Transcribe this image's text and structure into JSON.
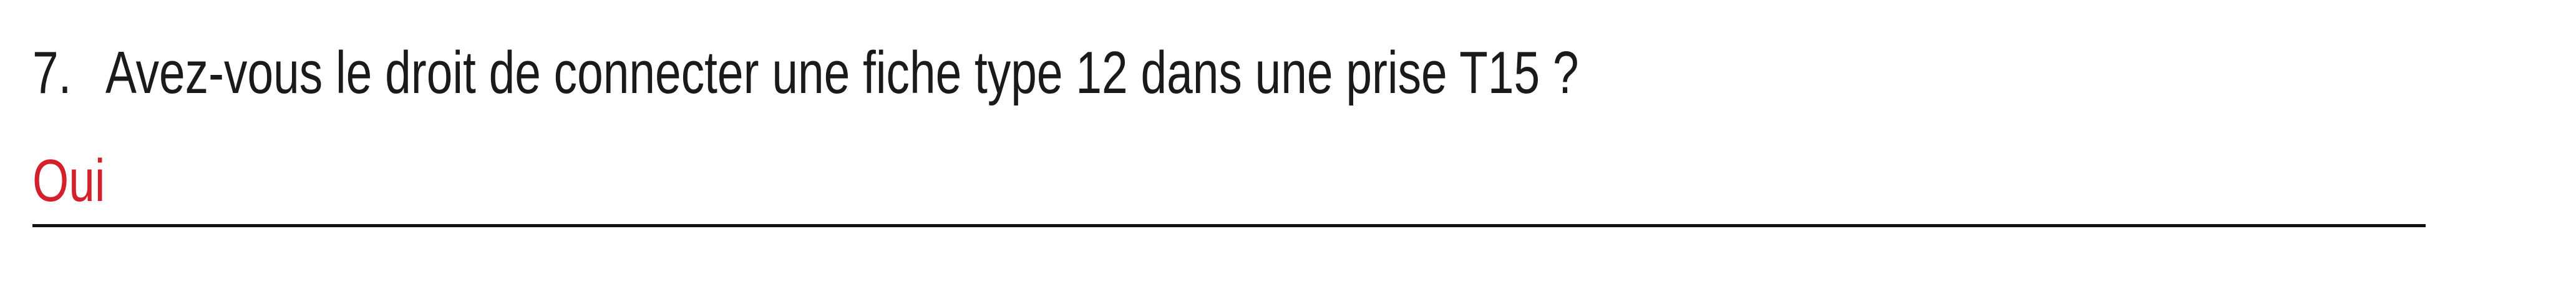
{
  "question": {
    "number": "7.",
    "text": "Avez-vous le droit de connecter une fiche type 12 dans une prise T15 ?"
  },
  "answer": {
    "text": "Oui"
  },
  "colors": {
    "question": "#1a1a1a",
    "answer": "#d4202a",
    "rule": "#111111"
  }
}
